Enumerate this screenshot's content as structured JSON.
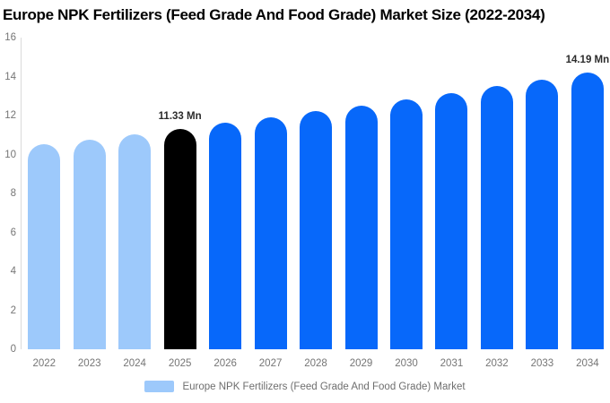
{
  "title": "Europe NPK Fertilizers (Feed Grade And Food Grade) Market Size (2022-2034)",
  "legend": {
    "label": "Europe NPK Fertilizers (Feed Grade And Food Grade) Market"
  },
  "colors": {
    "historical": "#9DC9FB",
    "highlight": "#000000",
    "forecast": "#0768FA",
    "axis_text": "#757575",
    "value_label_text": "#2B2B2B",
    "axis_line": "#DBDBDB",
    "title_text": "#000000",
    "background": "#FFFFFF"
  },
  "chart_data": {
    "type": "bar",
    "title": "Europe NPK Fertilizers (Feed Grade And Food Grade) Market Size (2022-2034)",
    "categories": [
      "2022",
      "2023",
      "2024",
      "2025",
      "2026",
      "2027",
      "2028",
      "2029",
      "2030",
      "2031",
      "2032",
      "2033",
      "2034"
    ],
    "values": [
      10.51,
      10.78,
      11.05,
      11.33,
      11.62,
      11.91,
      12.21,
      12.52,
      12.84,
      13.16,
      13.5,
      13.84,
      14.19
    ],
    "unit": "Mn",
    "bar_roles": [
      "historical",
      "historical",
      "historical",
      "highlight",
      "forecast",
      "forecast",
      "forecast",
      "forecast",
      "forecast",
      "forecast",
      "forecast",
      "forecast",
      "forecast"
    ],
    "point_labels": [
      "",
      "",
      "",
      "11.33 Mn",
      "",
      "",
      "",
      "",
      "",
      "",
      "",
      "",
      "14.19 Mn"
    ],
    "xlabel": "",
    "ylabel": "",
    "ylim": [
      0,
      16
    ],
    "yticks": [
      0,
      2,
      4,
      6,
      8,
      10,
      12,
      14,
      16
    ],
    "grid": false,
    "legend_position": "bottom",
    "legend_entries": [
      "Europe NPK Fertilizers (Feed Grade And Food Grade) Market"
    ]
  }
}
